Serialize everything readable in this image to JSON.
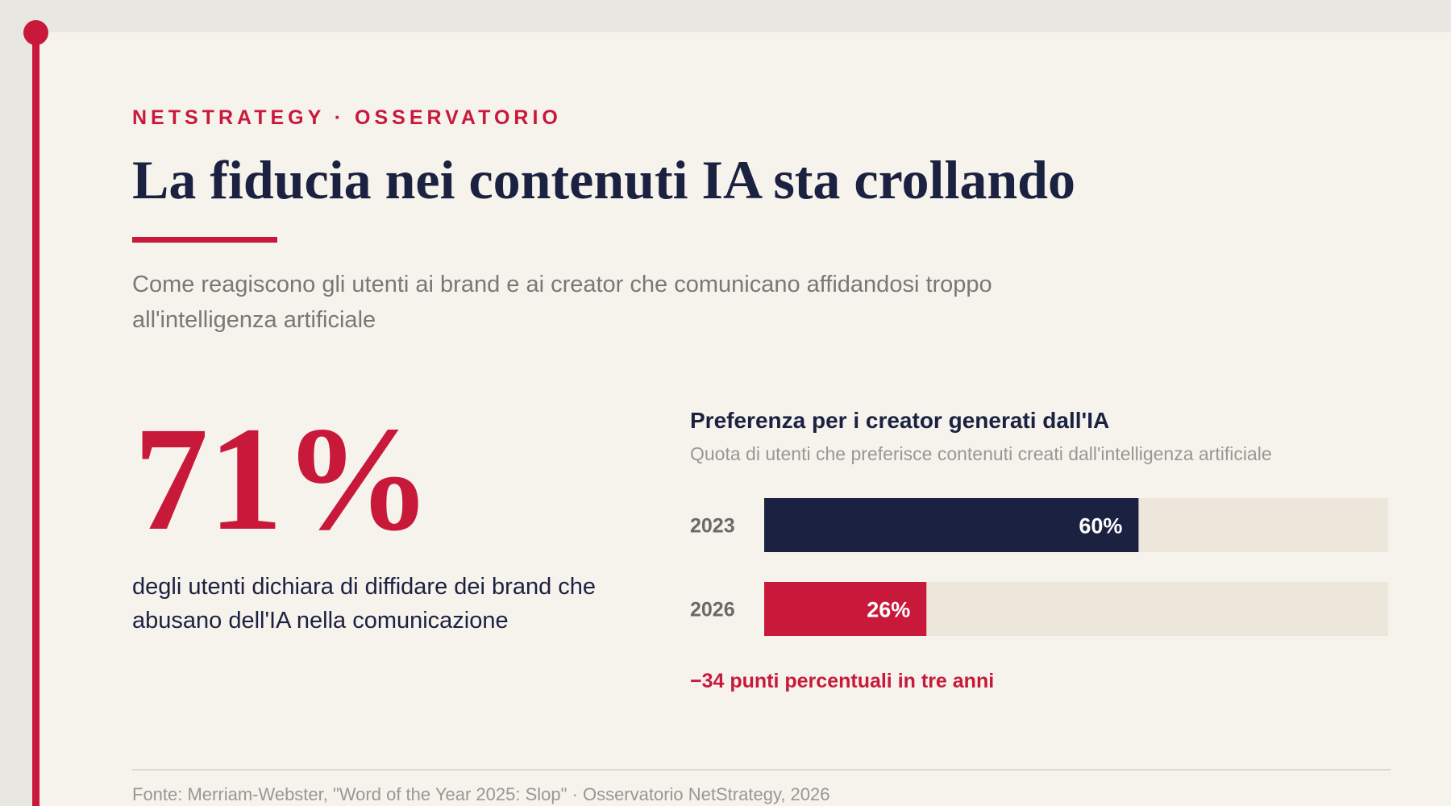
{
  "colors": {
    "accent": "#c8193b",
    "navy": "#1b2140",
    "track": "#ede6da",
    "background": "#f6f2ec"
  },
  "header": {
    "eyebrow": "NETSTRATEGY · OSSERVATORIO",
    "title": "La fiducia nei contenuti IA sta crollando",
    "subtitle": "Come reagiscono gli utenti ai brand e ai creator che comunicano affidandosi troppo all'intelligenza artificiale"
  },
  "stat": {
    "value": "71%",
    "description": "degli utenti dichiara di diffidare dei brand che abusano dell'IA nella comunicazione"
  },
  "chart_data": {
    "type": "bar",
    "orientation": "horizontal",
    "title": "Preferenza per i creator generati dall'IA",
    "subtitle": "Quota di utenti che preferisce contenuti creati dall'intelligenza artificiale",
    "categories": [
      "2023",
      "2026"
    ],
    "values": [
      60,
      26
    ],
    "value_labels": [
      "60%",
      "26%"
    ],
    "bar_colors": [
      "#1b2140",
      "#c8193b"
    ],
    "xlim": [
      0,
      100
    ],
    "annotation": "−34 punti percentuali in tre anni"
  },
  "footer": {
    "source": "Fonte: Merriam-Webster, \"Word of the Year 2025: Slop\" · Osservatorio NetStrategy, 2026"
  }
}
